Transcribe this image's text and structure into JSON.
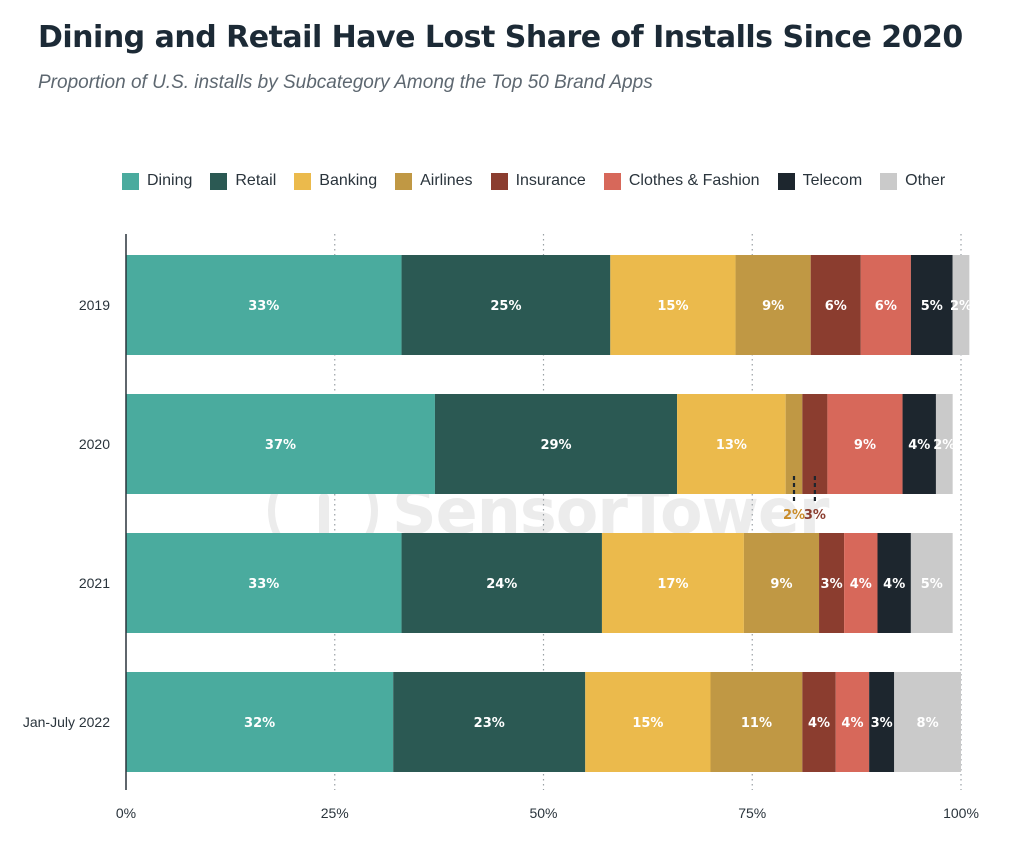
{
  "chart_data": {
    "type": "bar",
    "orientation": "horizontal",
    "stacked": true,
    "title": "Dining and Retail Have Lost Share of Installs Since 2020",
    "subtitle": "Proportion of U.S. installs by Subcategory Among the Top 50 Brand Apps",
    "watermark": "SensorTower",
    "categories": [
      "2019",
      "2020",
      "2021",
      "Jan-July 2022"
    ],
    "xlim": [
      0,
      100
    ],
    "x_ticks": [
      "0%",
      "25%",
      "50%",
      "75%",
      "100%"
    ],
    "grid": "vertical dotted",
    "legend_position": "top",
    "series": [
      {
        "name": "Dining",
        "color": "#4aab9e",
        "label_color": "#ffffff",
        "values": [
          33,
          37,
          33,
          32
        ],
        "labels": [
          "33%",
          "37%",
          "33%",
          "32%"
        ]
      },
      {
        "name": "Retail",
        "color": "#2b5953",
        "label_color": "#ffffff",
        "values": [
          25,
          29,
          24,
          23
        ],
        "labels": [
          "25%",
          "29%",
          "24%",
          "23%"
        ]
      },
      {
        "name": "Banking",
        "color": "#ebba4c",
        "label_color": "#ffffff",
        "values": [
          15,
          13,
          17,
          15
        ],
        "labels": [
          "15%",
          "13%",
          "17%",
          "15%"
        ]
      },
      {
        "name": "Airlines",
        "color": "#c09844",
        "label_color": "#ffffff",
        "values": [
          9,
          2,
          9,
          11
        ],
        "labels": [
          "9%",
          "2%",
          "9%",
          "11%"
        ],
        "outside_label_color": "#c98c2a"
      },
      {
        "name": "Insurance",
        "color": "#8b3d2f",
        "label_color": "#ffffff",
        "values": [
          6,
          3,
          3,
          4
        ],
        "labels": [
          "6%",
          "3%",
          "3%",
          "4%"
        ],
        "outside_label_color": "#8b3d2f"
      },
      {
        "name": "Clothes & Fashion",
        "color": "#d7685a",
        "label_color": "#ffffff",
        "values": [
          6,
          9,
          4,
          4
        ],
        "labels": [
          "6%",
          "9%",
          "4%",
          "4%"
        ]
      },
      {
        "name": "Telecom",
        "color": "#1d262e",
        "label_color": "#ffffff",
        "values": [
          5,
          4,
          4,
          3
        ],
        "labels": [
          "5%",
          "4%",
          "4%",
          "3%"
        ]
      },
      {
        "name": "Other",
        "color": "#cacaca",
        "label_color": "#ffffff",
        "values": [
          2,
          2,
          5,
          8
        ],
        "labels": [
          "2%",
          "2%",
          "5%",
          "8%"
        ]
      }
    ],
    "outside_labels": [
      {
        "category": "2020",
        "series": "Airlines",
        "text": "2%"
      },
      {
        "category": "2020",
        "series": "Insurance",
        "text": "3%"
      }
    ]
  }
}
